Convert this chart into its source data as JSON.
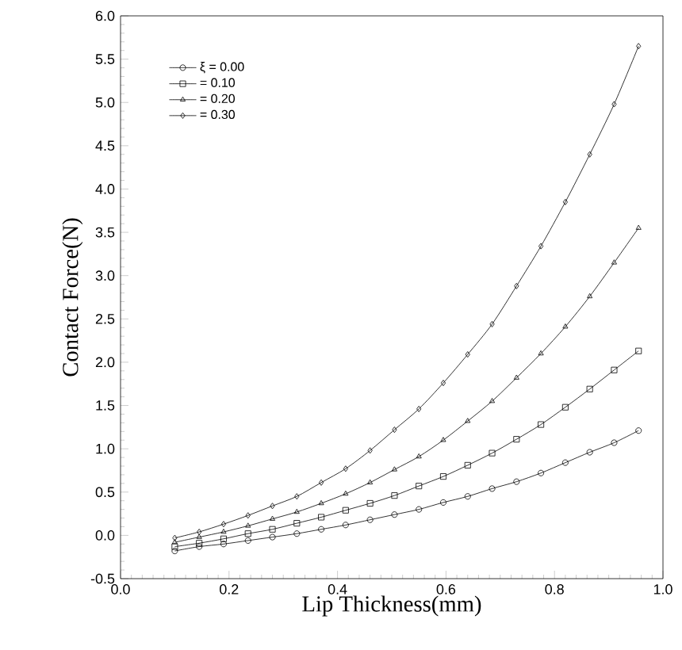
{
  "chart_data": {
    "type": "line",
    "xlabel": "Lip Thickness(mm)",
    "ylabel": "Contact Force(N)",
    "x": [
      0.1,
      0.145,
      0.19,
      0.235,
      0.28,
      0.325,
      0.37,
      0.415,
      0.46,
      0.505,
      0.55,
      0.595,
      0.64,
      0.685,
      0.73,
      0.775,
      0.82,
      0.865,
      0.91,
      0.955
    ],
    "series": [
      {
        "name": "ξ = 0.00",
        "color": "#000000",
        "marker": "circle",
        "values": [
          -0.18,
          -0.13,
          -0.1,
          -0.06,
          -0.02,
          0.02,
          0.07,
          0.12,
          0.18,
          0.24,
          0.3,
          0.38,
          0.45,
          0.54,
          0.62,
          0.72,
          0.84,
          0.96,
          1.07,
          1.21
        ]
      },
      {
        "name": "= 0.10",
        "color": "#000000",
        "marker": "square",
        "values": [
          -0.13,
          -0.09,
          -0.04,
          0.02,
          0.07,
          0.14,
          0.21,
          0.29,
          0.37,
          0.46,
          0.57,
          0.68,
          0.81,
          0.95,
          1.11,
          1.28,
          1.48,
          1.69,
          1.91,
          2.13
        ]
      },
      {
        "name": "= 0.20",
        "color": "#000000",
        "marker": "triangle",
        "values": [
          -0.08,
          -0.02,
          0.04,
          0.11,
          0.19,
          0.27,
          0.37,
          0.48,
          0.61,
          0.76,
          0.91,
          1.1,
          1.32,
          1.55,
          1.82,
          2.1,
          2.41,
          2.76,
          3.15,
          3.55
        ]
      },
      {
        "name": "= 0.30",
        "color": "#000000",
        "marker": "diamond",
        "values": [
          -0.03,
          0.04,
          0.13,
          0.23,
          0.34,
          0.45,
          0.61,
          0.77,
          0.98,
          1.22,
          1.46,
          1.76,
          2.09,
          2.44,
          2.88,
          3.34,
          3.85,
          4.4,
          4.98,
          5.65
        ]
      }
    ],
    "xlim": [
      0,
      1.0
    ],
    "ylim": [
      -0.5,
      6.0
    ],
    "xticks": [
      {
        "value": 0,
        "label": "0.0"
      },
      {
        "value": 0.2,
        "label": "0.2"
      },
      {
        "value": 0.4,
        "label": "0.4"
      },
      {
        "value": 0.6,
        "label": "0.6"
      },
      {
        "value": 0.8,
        "label": "0.8"
      },
      {
        "value": 1.0,
        "label": "1.0"
      }
    ],
    "yticks": [
      {
        "value": -0.5,
        "label": "-0.5"
      },
      {
        "value": 0,
        "label": "0.0"
      },
      {
        "value": 0.5,
        "label": "0.5"
      },
      {
        "value": 1.0,
        "label": "1.0"
      },
      {
        "value": 1.5,
        "label": "1.5"
      },
      {
        "value": 2.0,
        "label": "2.0"
      },
      {
        "value": 2.5,
        "label": "2.5"
      },
      {
        "value": 3.0,
        "label": "3.0"
      },
      {
        "value": 3.5,
        "label": "3.5"
      },
      {
        "value": 4.0,
        "label": "4.0"
      },
      {
        "value": 4.5,
        "label": "4.5"
      },
      {
        "value": 5.0,
        "label": "5.0"
      },
      {
        "value": 5.5,
        "label": "5.5"
      },
      {
        "value": 6.0,
        "label": "6.0"
      }
    ],
    "grid": false,
    "legend": "top left",
    "line_style": "solid"
  }
}
